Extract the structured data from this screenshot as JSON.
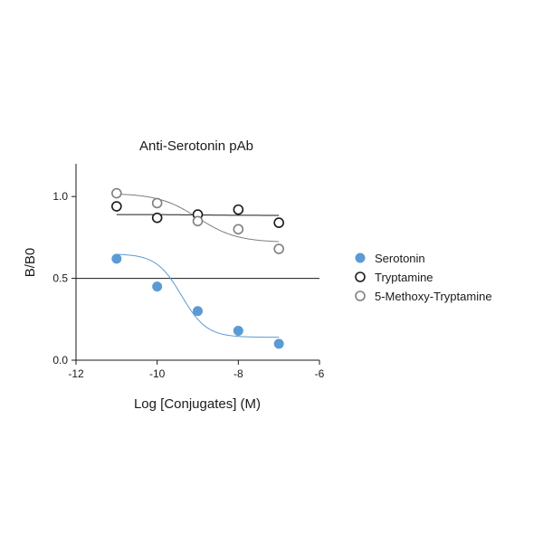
{
  "chart_data": {
    "type": "scatter",
    "title": "Anti-Serotonin pAb",
    "xlabel": "Log [Conjugates] (M)",
    "ylabel": "B/B0",
    "xlim": [
      -12,
      -6
    ],
    "ylim": [
      0,
      1.2
    ],
    "x_ticks": [
      -12,
      -10,
      -8,
      -6
    ],
    "x_tick_labels": [
      "-12",
      "-10",
      "-8",
      "-6"
    ],
    "y_ticks": [
      0,
      0.5,
      1.0
    ],
    "y_tick_labels": [
      "0.0",
      "0.5",
      "1.0"
    ],
    "reference_line_y": 0.5,
    "grid": false,
    "legend_position": "right",
    "series": [
      {
        "name": "Serotonin",
        "marker": "filled-circle",
        "color": "#5b9bd5",
        "x": [
          -11,
          -10,
          -9,
          -8,
          -7
        ],
        "y": [
          0.62,
          0.45,
          0.3,
          0.18,
          0.1
        ],
        "fit": {
          "top": 0.65,
          "bottom": 0.14,
          "log_ic50": -9.4,
          "hill": 1.4
        }
      },
      {
        "name": "Tryptamine",
        "marker": "open-circle",
        "color": "#1a1a1a",
        "x": [
          -11,
          -10,
          -9,
          -8,
          -7
        ],
        "y": [
          0.94,
          0.87,
          0.89,
          0.92,
          0.84
        ],
        "fit": {
          "top": 0.89,
          "bottom": 0.885,
          "log_ic50": -9.0,
          "hill": 1.0
        }
      },
      {
        "name": "5-Methoxy-Tryptamine",
        "marker": "open-circle",
        "color": "#7f7f7f",
        "x": [
          -11,
          -10,
          -9,
          -8,
          -7
        ],
        "y": [
          1.02,
          0.96,
          0.85,
          0.8,
          0.68
        ],
        "fit": {
          "top": 1.02,
          "bottom": 0.72,
          "log_ic50": -9.0,
          "hill": 0.9
        }
      }
    ]
  }
}
